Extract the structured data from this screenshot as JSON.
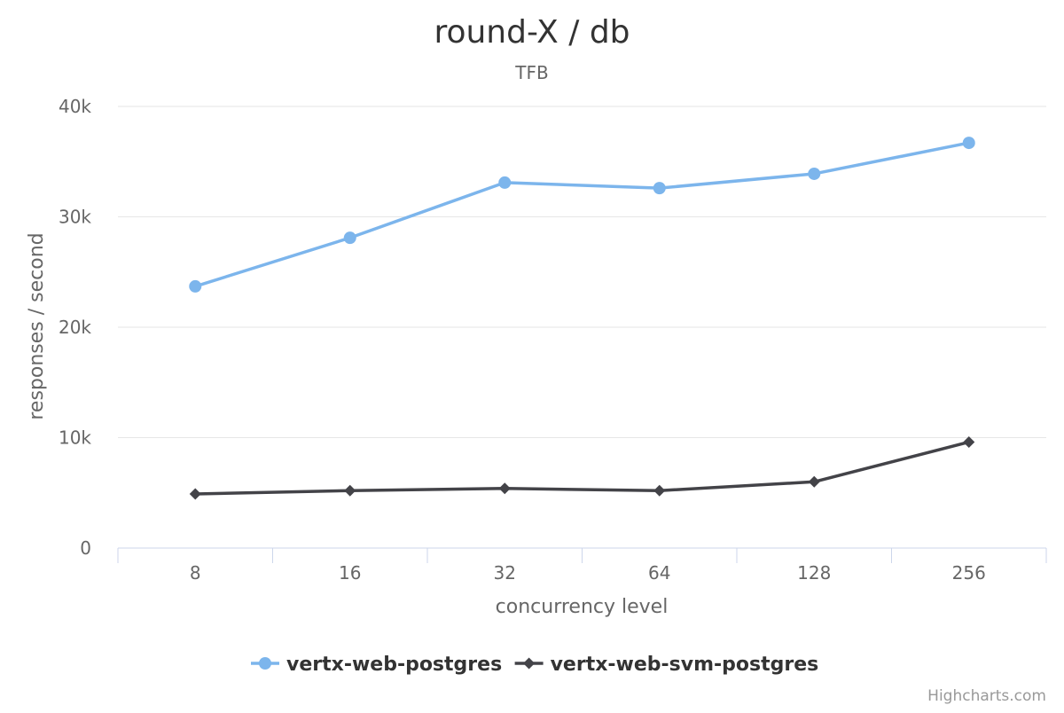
{
  "chart_data": {
    "type": "line",
    "title": "round-X / db",
    "subtitle": "TFB",
    "xlabel": "concurrency level",
    "ylabel": "responses / second",
    "categories": [
      "8",
      "16",
      "32",
      "64",
      "128",
      "256"
    ],
    "ylim": [
      0,
      40000
    ],
    "yticks": [
      {
        "value": 0,
        "label": "0"
      },
      {
        "value": 10000,
        "label": "10k"
      },
      {
        "value": 20000,
        "label": "20k"
      },
      {
        "value": 30000,
        "label": "30k"
      },
      {
        "value": 40000,
        "label": "40k"
      }
    ],
    "grid": true,
    "legend_position": "bottom-center",
    "series": [
      {
        "name": "vertx-web-postgres",
        "values": [
          23700,
          28100,
          33100,
          32600,
          33900,
          36700
        ],
        "color": "#7cb5ec",
        "marker": "circle"
      },
      {
        "name": "vertx-web-svm-postgres",
        "values": [
          4900,
          5200,
          5400,
          5200,
          6000,
          9600
        ],
        "color": "#434348",
        "marker": "diamond"
      }
    ]
  },
  "credits": "Highcharts.com",
  "colors": {
    "grid": "#e6e6e6",
    "axis": "#ccd6eb"
  }
}
